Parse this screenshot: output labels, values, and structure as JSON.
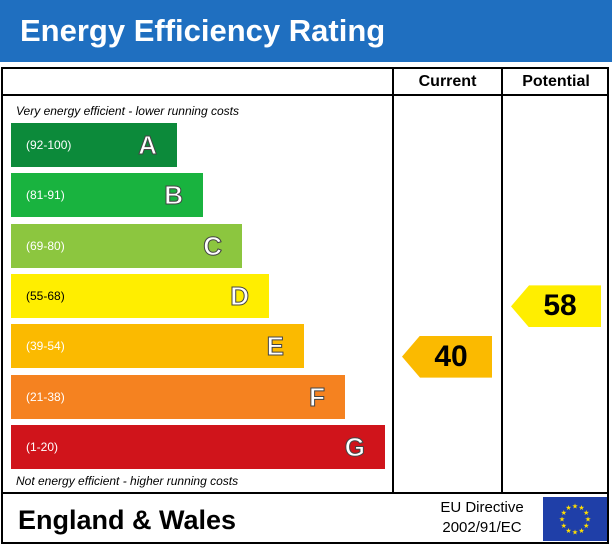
{
  "title": "Energy Efficiency Rating",
  "columns": {
    "current": "Current",
    "potential": "Potential"
  },
  "top_note": "Very energy efficient - lower running costs",
  "bottom_note": "Not energy efficient - higher running costs",
  "footer": {
    "region": "England & Wales",
    "directive_line1": "EU Directive",
    "directive_line2": "2002/91/EC"
  },
  "colors": {
    "title_bar": "#1f6fc0",
    "flag": "#1f3fa8",
    "flag_star": "#ffde00"
  },
  "chart_data": {
    "type": "bar",
    "bands": [
      {
        "letter": "A",
        "range": "(92-100)",
        "color": "#0c8a3a"
      },
      {
        "letter": "B",
        "range": "(81-91)",
        "color": "#19b33f"
      },
      {
        "letter": "C",
        "range": "(69-80)",
        "color": "#8cc63f"
      },
      {
        "letter": "D",
        "range": "(55-68)",
        "color": "#ffee00"
      },
      {
        "letter": "E",
        "range": "(39-54)",
        "color": "#fbba00"
      },
      {
        "letter": "F",
        "range": "(21-38)",
        "color": "#f58220"
      },
      {
        "letter": "G",
        "range": "(1-20)",
        "color": "#d0141b"
      }
    ],
    "current": {
      "value": 40,
      "band": "E",
      "color": "#fbba00"
    },
    "potential": {
      "value": 58,
      "band": "D",
      "color": "#ffee00"
    }
  }
}
